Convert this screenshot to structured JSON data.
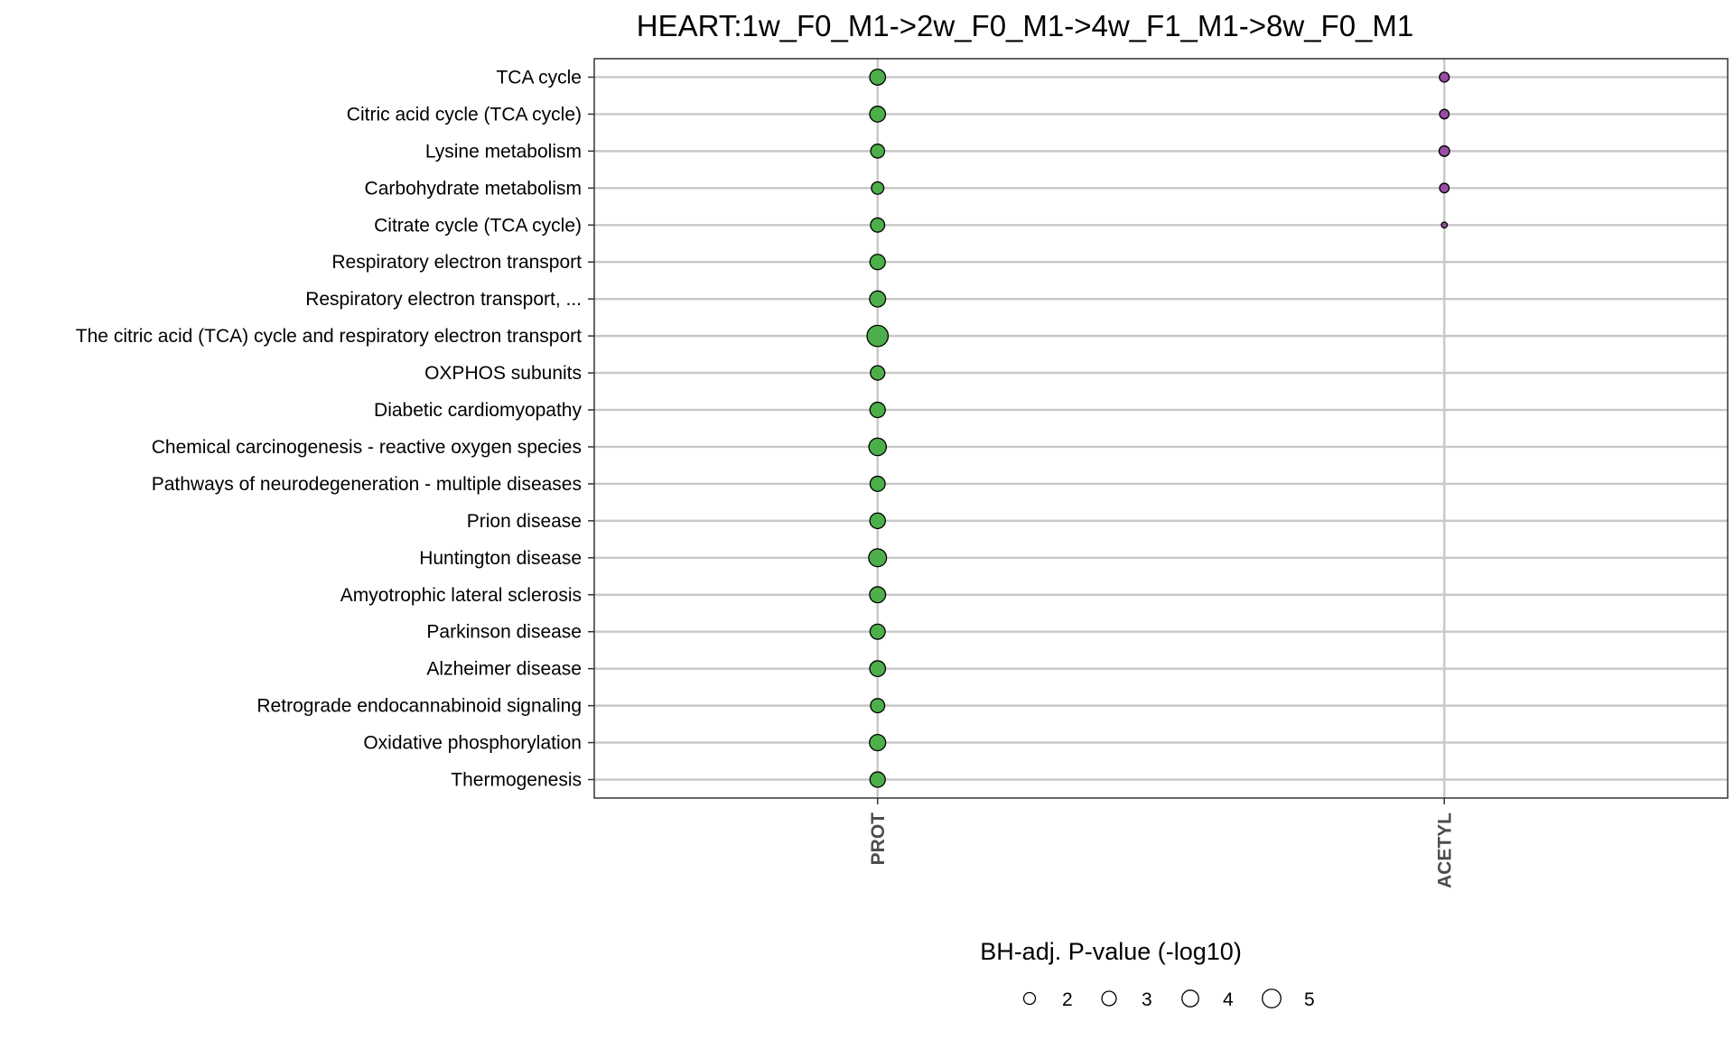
{
  "chart_data": {
    "type": "scatter",
    "title": "HEART:1w_F0_M1->2w_F0_M1->4w_F1_M1->8w_F0_M1",
    "categories": [
      "PROT",
      "ACETYL"
    ],
    "pathways": [
      "TCA cycle",
      "Citric acid cycle (TCA cycle)",
      "Lysine metabolism",
      "Carbohydrate metabolism",
      "Citrate cycle (TCA cycle)",
      "Respiratory electron transport",
      "Respiratory electron transport, ...",
      "The citric acid (TCA) cycle and respiratory electron transport",
      "OXPHOS subunits",
      "Diabetic cardiomyopathy",
      "Chemical carcinogenesis - reactive oxygen species",
      "Pathways of neurodegeneration - multiple diseases",
      "Prion disease",
      "Huntington disease",
      "Amyotrophic lateral sclerosis",
      "Parkinson disease",
      "Alzheimer disease",
      "Retrograde endocannabinoid signaling",
      "Oxidative phosphorylation",
      "Thermogenesis"
    ],
    "series": [
      {
        "category": "PROT",
        "color": "#4daf4a",
        "values": [
          3.6,
          3.6,
          2.8,
          2.2,
          2.9,
          3.4,
          3.7,
          6.5,
          3.0,
          3.4,
          4.4,
          3.3,
          3.5,
          4.6,
          3.7,
          3.3,
          3.6,
          2.9,
          3.8,
          3.4
        ]
      },
      {
        "category": "ACETYL",
        "color": "#984ea3",
        "values": [
          1.4,
          1.3,
          1.6,
          1.3,
          0.5,
          null,
          null,
          null,
          null,
          null,
          null,
          null,
          null,
          null,
          null,
          null,
          null,
          null,
          null,
          null
        ]
      }
    ],
    "legend": {
      "title": "BH-adj. P-value (-log10)",
      "sizes": [
        2,
        3,
        4,
        5
      ],
      "placement": "bottom"
    },
    "grid": true
  }
}
